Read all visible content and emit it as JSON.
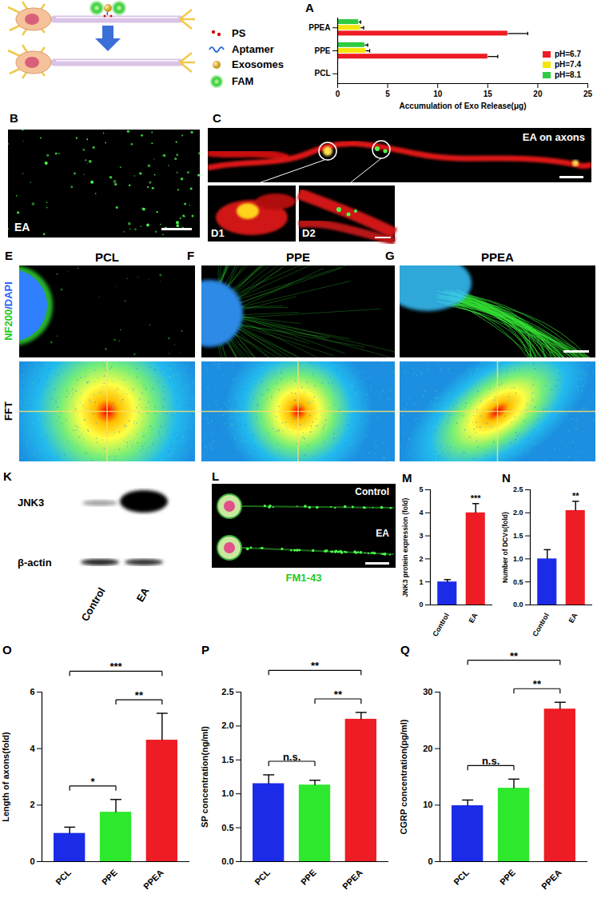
{
  "schematic_legend": [
    "PS",
    "Aptamer",
    "Exosomes",
    "FAM"
  ],
  "images": {
    "B": {
      "label": "B",
      "caption": "EA"
    },
    "C": {
      "label": "C",
      "caption": "EA on axons",
      "insets": [
        "D1",
        "D2"
      ]
    },
    "E": {
      "label": "E",
      "title": "PCL"
    },
    "F": {
      "label": "F",
      "title": "PPE"
    },
    "G": {
      "label": "G",
      "title": "PPEA"
    },
    "stain": [
      "NF200",
      "/",
      "DAPI"
    ],
    "fft": "FFT",
    "K": {
      "label": "K",
      "proteins": [
        "JNK3",
        "β-actin"
      ],
      "lanes": [
        "Control",
        "EA"
      ]
    },
    "L": {
      "label": "L",
      "rows": [
        "Control",
        "EA"
      ],
      "stain": "FM1-43"
    }
  },
  "chart_data": [
    {
      "title": "A",
      "type": "bar",
      "orientation": "horizontal",
      "categories": [
        "PPEA",
        "PPE",
        "PCL"
      ],
      "series": [
        {
          "name": "pH=6.7",
          "color": "#ee1c24",
          "values": [
            17,
            15,
            0
          ],
          "errors": [
            2,
            1,
            null
          ]
        },
        {
          "name": "pH=7.4",
          "color": "#f5e50a",
          "values": [
            2.3,
            2.8,
            0
          ],
          "errors": [
            0.3,
            0.4,
            null
          ]
        },
        {
          "name": "pH=8.1",
          "color": "#2ecc40",
          "values": [
            2.1,
            2.7,
            0
          ],
          "errors": [
            0.2,
            0.3,
            null
          ]
        }
      ],
      "xlabel": "Accumulation of Exo Release(μg)",
      "xlim": [
        0,
        25
      ],
      "xticks": [
        0,
        5,
        10,
        15,
        20,
        25
      ],
      "legend": "bottom-right"
    },
    {
      "title": "M",
      "type": "bar",
      "categories": [
        "Control",
        "EA"
      ],
      "values": [
        1,
        4
      ],
      "errors": [
        0.1,
        0.4
      ],
      "colors": [
        "#1b2be8",
        "#ee1c24"
      ],
      "ylabel": "JNK3 protein expression (fold)",
      "ylim": [
        0,
        5
      ],
      "yticks": [
        0,
        1,
        2,
        3,
        4,
        5
      ],
      "annotations": [
        {
          "category": "EA",
          "text": "***"
        }
      ]
    },
    {
      "title": "N",
      "type": "bar",
      "categories": [
        "Control",
        "EA"
      ],
      "values": [
        1,
        2.05
      ],
      "errors": [
        0.2,
        0.2
      ],
      "colors": [
        "#1b2be8",
        "#ee1c24"
      ],
      "ylabel": "Number of DCVs(fold)",
      "ylim": [
        0,
        2.5
      ],
      "yticks": [
        {
          "value": 0,
          "label": "0.0"
        },
        {
          "value": 0.5,
          "label": "0.5"
        },
        {
          "value": 1,
          "label": "1.0"
        },
        {
          "value": 1.5,
          "label": "1.5"
        },
        {
          "value": 2,
          "label": "2.0"
        },
        {
          "value": 2.5,
          "label": "2.5"
        }
      ],
      "annotations": [
        {
          "category": "EA",
          "text": "**"
        }
      ]
    },
    {
      "title": "O",
      "type": "bar",
      "categories": [
        "PCL",
        "PPE",
        "PPEA"
      ],
      "values": [
        1,
        1.75,
        4.3
      ],
      "errors": [
        0.22,
        0.45,
        0.95
      ],
      "colors": [
        "#1b2be8",
        "#2ee82e",
        "#ee1c24"
      ],
      "ylabel": "Length of axons(fold)",
      "ylim": [
        0,
        6
      ],
      "yticks": [
        0,
        2,
        4,
        6
      ],
      "comparisons": [
        {
          "from": "PCL",
          "to": "PPE",
          "text": "*"
        },
        {
          "from": "PCL",
          "to": "PPEA",
          "text": "***"
        },
        {
          "from": "PPE",
          "to": "PPEA",
          "text": "**"
        }
      ]
    },
    {
      "title": "P",
      "type": "bar",
      "categories": [
        "PCL",
        "PPE",
        "PPEA"
      ],
      "values": [
        1.15,
        1.13,
        2.1
      ],
      "errors": [
        0.13,
        0.07,
        0.1
      ],
      "colors": [
        "#1b2be8",
        "#2ee82e",
        "#ee1c24"
      ],
      "ylabel": "SP concentration(ng/ml)",
      "ylim": [
        0,
        2.5
      ],
      "yticks": [
        {
          "value": 0,
          "label": "0.0"
        },
        {
          "value": 0.5,
          "label": "0.5"
        },
        {
          "value": 1,
          "label": "1.0"
        },
        {
          "value": 1.5,
          "label": "1.5"
        },
        {
          "value": 2,
          "label": "2.0"
        },
        {
          "value": 2.5,
          "label": "2.5"
        }
      ],
      "comparisons": [
        {
          "from": "PCL",
          "to": "PPE",
          "text": "n.s."
        },
        {
          "from": "PCL",
          "to": "PPEA",
          "text": "**"
        },
        {
          "from": "PPE",
          "to": "PPEA",
          "text": "**"
        }
      ]
    },
    {
      "title": "Q",
      "type": "bar",
      "categories": [
        "PCL",
        "PPE",
        "PPEA"
      ],
      "values": [
        9.9,
        13,
        27
      ],
      "errors": [
        1,
        1.6,
        1.2
      ],
      "colors": [
        "#1b2be8",
        "#2ee82e",
        "#ee1c24"
      ],
      "ylabel": "CGRP concentration(pg/ml)",
      "ylim": [
        0,
        30
      ],
      "yticks": [
        0,
        10,
        20,
        30
      ],
      "comparisons": [
        {
          "from": "PCL",
          "to": "PPE",
          "text": "n.s."
        },
        {
          "from": "PCL",
          "to": "PPEA",
          "text": "**"
        },
        {
          "from": "PPE",
          "to": "PPEA",
          "text": "**"
        }
      ]
    }
  ]
}
